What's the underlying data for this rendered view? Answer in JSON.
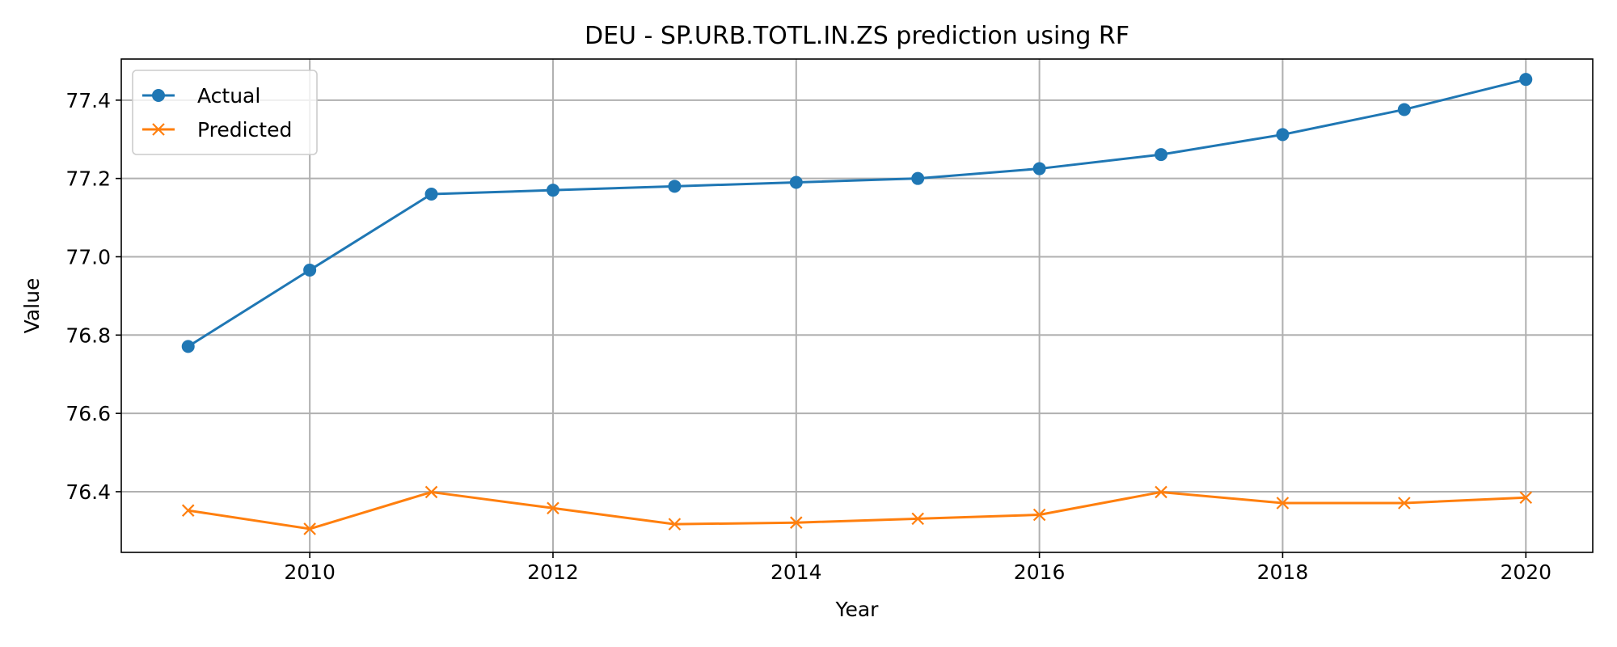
{
  "chart_data": {
    "type": "line",
    "title": "DEU - SP.URB.TOTL.IN.ZS prediction using RF",
    "xlabel": "Year",
    "ylabel": "Value",
    "xlim": [
      2008.45,
      2020.55
    ],
    "ylim": [
      76.245,
      77.505
    ],
    "xticks": [
      2010,
      2012,
      2014,
      2016,
      2018,
      2020
    ],
    "xtick_labels": [
      "2010",
      "2012",
      "2014",
      "2016",
      "2018",
      "2020"
    ],
    "yticks": [
      76.4,
      76.6,
      76.8,
      77.0,
      77.2,
      77.4
    ],
    "ytick_labels": [
      "76.4",
      "76.6",
      "76.8",
      "77.0",
      "77.2",
      "77.4"
    ],
    "grid": true,
    "legend_position": "top-left",
    "x": [
      2009,
      2010,
      2011,
      2012,
      2013,
      2014,
      2015,
      2016,
      2017,
      2018,
      2019,
      2020
    ],
    "series": [
      {
        "name": "Actual",
        "color": "#1f77b4",
        "marker": "circle",
        "values": [
          76.771,
          76.966,
          77.16,
          77.17,
          77.18,
          77.19,
          77.2,
          77.225,
          77.261,
          77.312,
          77.376,
          77.453
        ]
      },
      {
        "name": "Predicted",
        "color": "#ff7f0e",
        "marker": "x",
        "values": [
          76.352,
          76.305,
          76.399,
          76.358,
          76.317,
          76.321,
          76.331,
          76.341,
          76.399,
          76.371,
          76.371,
          76.385
        ]
      }
    ]
  }
}
